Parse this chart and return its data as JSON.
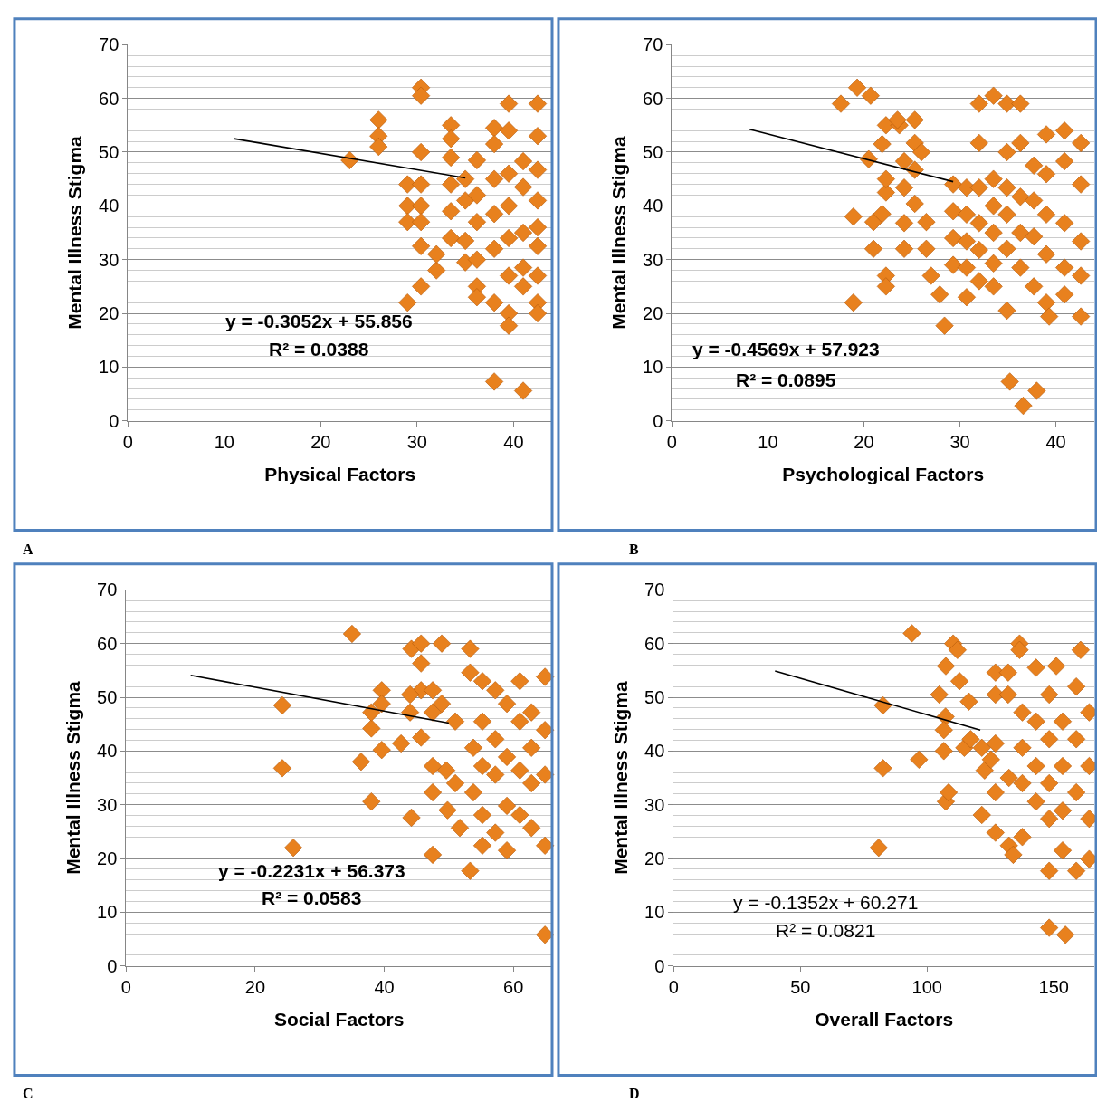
{
  "chart_data": [
    {
      "type": "scatter",
      "title": "A",
      "xlabel": "Physical Factors",
      "ylabel": "Mental Illness Stigma",
      "xlim": [
        0,
        44
      ],
      "xticks": [
        0,
        10,
        20,
        30,
        40
      ],
      "ylim": [
        0,
        70
      ],
      "yticks": [
        0,
        10,
        20,
        30,
        40,
        50,
        60,
        70
      ],
      "grid": "y",
      "annotations": [
        "y = -0.3052x + 55.856",
        "R² = 0.0388"
      ],
      "series": [
        {
          "color": "#e8811e",
          "marker": "diamond",
          "x": [
            23,
            26,
            26,
            26,
            30.4,
            30.4,
            30.4,
            29,
            30.4,
            29,
            30.4,
            29,
            30.4,
            30.4,
            30.4,
            29,
            32,
            32,
            33.5,
            33.5,
            33.5,
            33.5,
            33.5,
            33.5,
            35,
            35,
            35,
            35,
            36.2,
            36.2,
            36.2,
            36.2,
            36.2,
            36.2,
            38,
            38,
            38,
            38,
            38,
            38,
            38,
            39.5,
            39.5,
            39.5,
            39.5,
            39.5,
            39.5,
            39.5,
            39.5,
            41,
            41,
            41,
            41,
            41,
            41,
            42.5,
            42.5,
            42.5,
            42.5,
            42.5,
            42.5,
            42.5,
            42.5,
            42.5
          ],
          "values": [
            48.5,
            56,
            53,
            51,
            62,
            60.5,
            50,
            44,
            44,
            40,
            40,
            37,
            37,
            32.5,
            25,
            22,
            28,
            31,
            55,
            52.5,
            49,
            44,
            39,
            34,
            45,
            41,
            33.5,
            29.5,
            48.5,
            42,
            37,
            30,
            25,
            23,
            54.5,
            51.5,
            45,
            38.5,
            32,
            22,
            7.3,
            59,
            54,
            46,
            40,
            34,
            27,
            20,
            17.7,
            5.6,
            48.3,
            43.5,
            35,
            28.5,
            25,
            59,
            53,
            46.7,
            41,
            36,
            32.5,
            27,
            22,
            20
          ]
        },
        {
          "type": "line",
          "color": "#000000",
          "marker": "none",
          "x": [
            11,
            35
          ],
          "values": [
            52.5,
            45.2
          ]
        }
      ]
    },
    {
      "type": "scatter",
      "title": "B",
      "xlabel": "Psychological Factors",
      "ylabel": "Mental Illness Stigma",
      "xlim": [
        0,
        44
      ],
      "xticks": [
        0,
        10,
        20,
        30,
        40
      ],
      "ylim": [
        0,
        70
      ],
      "yticks": [
        0,
        10,
        20,
        30,
        40,
        50,
        60,
        70
      ],
      "grid": "y",
      "annotations": [
        "y = -0.4569x + 57.923",
        "R² = 0.0895"
      ],
      "series": [
        {
          "color": "#e8811e",
          "marker": "diamond",
          "x": [
            17.6,
            19.3,
            20.7,
            18.9,
            18.9,
            20.5,
            21.9,
            21,
            21,
            21.9,
            22.3,
            23.7,
            23.5,
            22.3,
            22.3,
            22.3,
            22.3,
            24.2,
            24.2,
            24.2,
            24.2,
            25.3,
            25.3,
            25.3,
            25.3,
            26,
            26.5,
            26.5,
            27,
            27.9,
            28.4,
            29.3,
            29.3,
            29.3,
            29.3,
            30.7,
            30.7,
            30.7,
            30.7,
            30.7,
            32,
            32,
            32,
            32,
            32,
            32,
            33.5,
            33.5,
            33.5,
            33.5,
            33.5,
            33.5,
            34.9,
            34.9,
            34.9,
            34.9,
            34.9,
            34.9,
            35.2,
            36.3,
            36.3,
            36.3,
            36.3,
            36.3,
            36.6,
            37.7,
            37.7,
            37.7,
            37.7,
            38,
            39,
            39,
            39,
            39,
            39,
            39.3,
            40.9,
            40.9,
            40.9,
            40.9,
            40.9,
            42.6,
            42.6,
            42.6,
            42.6,
            42.6
          ],
          "values": [
            59,
            62,
            60.5,
            38,
            22,
            48.7,
            51.5,
            32,
            37,
            38.5,
            55,
            55,
            56,
            42.5,
            45,
            27,
            25,
            48.3,
            43.4,
            36.8,
            32,
            56,
            51.7,
            46.7,
            40.4,
            50,
            37,
            32,
            27,
            23.5,
            17.7,
            44,
            39,
            34,
            29,
            43.4,
            38.4,
            33.4,
            28.5,
            23,
            59,
            51.7,
            43.4,
            36.8,
            31.8,
            26,
            60.5,
            45,
            40,
            35,
            29.3,
            25,
            59,
            50,
            43.4,
            38.4,
            32,
            20.5,
            7.3,
            59,
            51.7,
            41.7,
            35,
            28.5,
            2.8,
            47.5,
            41,
            34.3,
            25,
            5.6,
            53.3,
            45.9,
            38.4,
            31,
            22,
            19.4,
            54,
            48.3,
            36.8,
            28.5,
            23.5,
            51.7,
            44,
            33.4,
            27,
            19.4
          ]
        },
        {
          "type": "line",
          "color": "#000000",
          "marker": "none",
          "x": [
            8,
            29.3
          ],
          "values": [
            54.3,
            44.5
          ]
        }
      ]
    },
    {
      "type": "scatter",
      "title": "C",
      "xlabel": "Social Factors",
      "ylabel": "Mental Illness Stigma",
      "xlim": [
        0,
        66
      ],
      "xticks": [
        0,
        20,
        40,
        60
      ],
      "ylim": [
        0,
        70
      ],
      "yticks": [
        0,
        10,
        20,
        30,
        40,
        50,
        60,
        70
      ],
      "grid": "y",
      "annotations": [
        "y = -0.2231x + 56.373",
        "R² = 0.0583"
      ],
      "series": [
        {
          "color": "#e8811e",
          "marker": "diamond",
          "x": [
            35,
            24.2,
            24.2,
            25.9,
            36.4,
            38,
            38,
            38,
            39.6,
            39.6,
            39.6,
            42.6,
            44.2,
            44.2,
            45.7,
            45.7,
            45.7,
            45.7,
            44,
            44,
            47.5,
            47.5,
            47.5,
            47.5,
            47.5,
            48.9,
            48.9,
            49.6,
            49.8,
            51,
            51,
            51.7,
            53.3,
            53.3,
            53.3,
            53.8,
            53.8,
            55.2,
            55.2,
            55.2,
            55.2,
            55.2,
            57.2,
            57.2,
            57.2,
            57.2,
            59,
            59,
            59,
            59,
            61,
            61,
            61,
            61,
            62.8,
            62.8,
            62.8,
            62.8,
            64.9,
            64.9,
            64.9,
            64.9,
            64.9
          ],
          "values": [
            61.8,
            48.5,
            36.8,
            22,
            38,
            30.6,
            44.2,
            47.2,
            51.3,
            48.8,
            40.2,
            41.4,
            27.6,
            59,
            60,
            56.3,
            51.3,
            42.5,
            50.5,
            47.2,
            51.3,
            47.2,
            37.2,
            20.7,
            32.3,
            60,
            48.8,
            36.4,
            29,
            45.5,
            34,
            25.7,
            59,
            54.6,
            17.7,
            40.6,
            32.3,
            53,
            22.4,
            45.5,
            37.2,
            28.1,
            51.3,
            42.2,
            35.6,
            24.8,
            48.8,
            38.9,
            29.8,
            21.5,
            53,
            45.5,
            36.4,
            28.1,
            47.2,
            40.6,
            34,
            25.7,
            53.8,
            43.9,
            35.6,
            22.4,
            5.8
          ]
        },
        {
          "type": "line",
          "color": "#000000",
          "marker": "none",
          "x": [
            10,
            50
          ],
          "values": [
            54.1,
            45.2
          ]
        }
      ]
    },
    {
      "type": "scatter",
      "title": "D",
      "xlabel": "Overall Factors",
      "ylabel": "Mental Illness Stigma",
      "xlim": [
        0,
        166
      ],
      "xticks": [
        0,
        50,
        100,
        150
      ],
      "ylim": [
        0,
        70
      ],
      "yticks": [
        0,
        10,
        20,
        30,
        40,
        50,
        60,
        70
      ],
      "grid": "y",
      "annotations": [
        "y = -0.1352x + 60.271",
        "R² = 0.0821"
      ],
      "series": [
        {
          "color": "#e8811e",
          "marker": "diamond",
          "x": [
            94,
            82.6,
            82.6,
            80.9,
            96.8,
            107.4,
            108.5,
            110.3,
            112,
            107.4,
            112.8,
            104.8,
            107.3,
            106.6,
            106.6,
            116.5,
            114.7,
            117.2,
            127,
            132,
            127,
            132,
            122.7,
            125.2,
            121.6,
            127,
            136.5,
            136.5,
            143,
            137.6,
            137.6,
            137.6,
            137.6,
            132.3,
            134,
            148.2,
            148.2,
            154.6,
            148.2,
            148.2,
            148.2,
            148.2,
            151,
            143,
            143,
            143,
            153.5,
            153.5,
            153.5,
            153.5,
            158.9,
            160.6,
            158.9,
            158.9,
            158.9,
            164,
            164,
            164,
            164,
            127,
            132.3,
            127,
            121.6
          ],
          "values": [
            61.9,
            48.5,
            36.8,
            22,
            38.4,
            30.6,
            32.3,
            60,
            58.8,
            55.8,
            53,
            50.5,
            46.4,
            43.9,
            40,
            49.2,
            40.6,
            42.2,
            54.6,
            54.6,
            50.5,
            50.5,
            36.4,
            38.4,
            28.1,
            24.8,
            60,
            58.8,
            55.5,
            47.2,
            40.6,
            34,
            24,
            22.4,
            20.7,
            17.7,
            7.1,
            5.8,
            50.5,
            42.2,
            34,
            27.4,
            55.8,
            45.5,
            37.2,
            30.6,
            45.5,
            37.2,
            28.9,
            21.5,
            52,
            58.8,
            42.2,
            32.3,
            17.7,
            47.2,
            37.2,
            27.4,
            19.9,
            41.4,
            35,
            32.3,
            40.6
          ]
        },
        {
          "type": "line",
          "color": "#000000",
          "marker": "none",
          "x": [
            40,
            121
          ],
          "values": [
            54.9,
            43.9
          ]
        }
      ]
    }
  ]
}
